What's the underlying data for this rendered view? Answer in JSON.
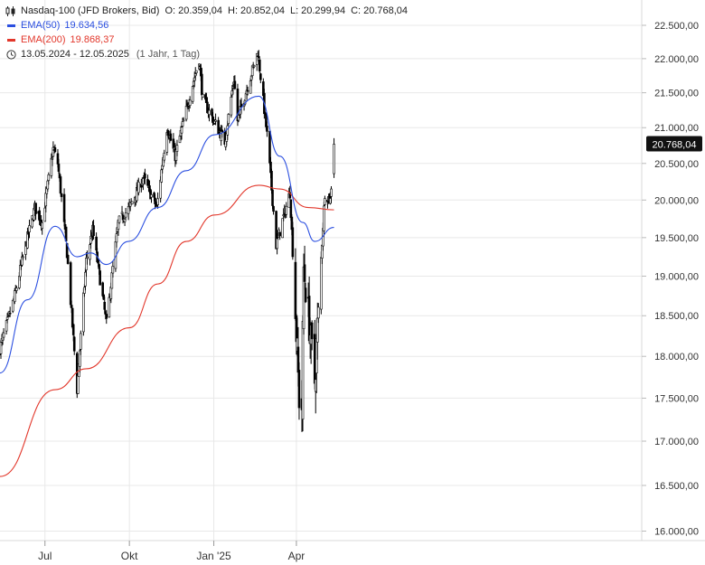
{
  "legend": {
    "instrument": "Nasdaq-100 (JFD Brokers, Bid)",
    "o_label": "O:",
    "o_value": "20.359,04",
    "h_label": "H:",
    "h_value": "20.852,04",
    "l_label": "L:",
    "l_value": "20.299,94",
    "c_label": "C:",
    "c_value": "20.768,04",
    "ema50_label": "EMA(50)",
    "ema50_value": "19.634,56",
    "ema200_label": "EMA(200)",
    "ema200_value": "19.868,37",
    "range": "13.05.2024 - 12.05.2025",
    "period": "(1 Jahr, 1 Tag)"
  },
  "last_price_label": "20.768,04",
  "colors": {
    "ema50": "#2b4fe0",
    "ema200": "#e2372b",
    "candle": "#000000",
    "price_tag_bg": "#111111",
    "grid": "#e8e8e8"
  },
  "chart_data": {
    "type": "candlestick",
    "title": "Nasdaq-100 (JFD Brokers, Bid)",
    "x_tick_labels": [
      "Jul",
      "Okt",
      "Jan '25",
      "Apr"
    ],
    "y_tick_labels": [
      "16.000,00",
      "16.500,00",
      "17.000,00",
      "17.500,00",
      "18.000,00",
      "18.500,00",
      "19.000,00",
      "19.500,00",
      "20.000,00",
      "20.500,00",
      "21.000,00",
      "21.500,00",
      "22.000,00",
      "22.500,00"
    ],
    "y_ticks": [
      16000,
      16500,
      17000,
      17500,
      18000,
      18500,
      19000,
      19500,
      20000,
      20500,
      21000,
      21500,
      22000,
      22500
    ],
    "ylim": [
      15700,
      22750
    ],
    "y_scale": "log",
    "grid": true,
    "last_value": 20768.04,
    "price_series_keypoints": [
      {
        "date": "2024-05-13",
        "close": 18100
      },
      {
        "date": "2024-05-28",
        "close": 18700
      },
      {
        "date": "2024-06-10",
        "close": 19400
      },
      {
        "date": "2024-06-20",
        "close": 19900
      },
      {
        "date": "2024-06-28",
        "close": 19700
      },
      {
        "date": "2024-07-10",
        "close": 20700
      },
      {
        "date": "2024-07-15",
        "close": 20500
      },
      {
        "date": "2024-07-25",
        "close": 19300
      },
      {
        "date": "2024-08-05",
        "close": 17600
      },
      {
        "date": "2024-08-15",
        "close": 19200
      },
      {
        "date": "2024-08-22",
        "close": 19600
      },
      {
        "date": "2024-09-06",
        "close": 18400
      },
      {
        "date": "2024-09-19",
        "close": 19700
      },
      {
        "date": "2024-10-01",
        "close": 19900
      },
      {
        "date": "2024-10-16",
        "close": 20300
      },
      {
        "date": "2024-10-31",
        "close": 19900
      },
      {
        "date": "2024-11-11",
        "close": 21000
      },
      {
        "date": "2024-11-20",
        "close": 20600
      },
      {
        "date": "2024-12-16",
        "close": 22000
      },
      {
        "date": "2024-12-20",
        "close": 21400
      },
      {
        "date": "2025-01-13",
        "close": 20800
      },
      {
        "date": "2025-01-23",
        "close": 21700
      },
      {
        "date": "2025-01-27",
        "close": 21100
      },
      {
        "date": "2025-02-18",
        "close": 22100
      },
      {
        "date": "2025-02-28",
        "close": 20900
      },
      {
        "date": "2025-03-10",
        "close": 19400
      },
      {
        "date": "2025-03-25",
        "close": 20100
      },
      {
        "date": "2025-04-04",
        "close": 17500
      },
      {
        "date": "2025-04-07",
        "close": 17400
      },
      {
        "date": "2025-04-09",
        "close": 19100
      },
      {
        "date": "2025-04-21",
        "close": 17700
      },
      {
        "date": "2025-05-02",
        "close": 20100
      },
      {
        "date": "2025-05-08",
        "close": 20000
      },
      {
        "date": "2025-05-12",
        "close": 20768.04
      }
    ],
    "series": [
      {
        "name": "EMA(50)",
        "points": [
          {
            "date": "2024-05-13",
            "value": 17800
          },
          {
            "date": "2024-06-12",
            "value": 18700
          },
          {
            "date": "2024-07-12",
            "value": 19650
          },
          {
            "date": "2024-08-05",
            "value": 19250
          },
          {
            "date": "2024-08-20",
            "value": 19300
          },
          {
            "date": "2024-09-06",
            "value": 19150
          },
          {
            "date": "2024-09-30",
            "value": 19450
          },
          {
            "date": "2024-11-01",
            "value": 19900
          },
          {
            "date": "2024-12-02",
            "value": 20400
          },
          {
            "date": "2025-01-02",
            "value": 20900
          },
          {
            "date": "2025-02-19",
            "value": 21450
          },
          {
            "date": "2025-03-14",
            "value": 20600
          },
          {
            "date": "2025-04-08",
            "value": 19700
          },
          {
            "date": "2025-04-21",
            "value": 19450
          },
          {
            "date": "2025-05-12",
            "value": 19634.56
          }
        ]
      },
      {
        "name": "EMA(200)",
        "points": [
          {
            "date": "2024-05-13",
            "value": 16600
          },
          {
            "date": "2024-07-12",
            "value": 17600
          },
          {
            "date": "2024-08-15",
            "value": 17850
          },
          {
            "date": "2024-10-01",
            "value": 18350
          },
          {
            "date": "2024-11-01",
            "value": 18900
          },
          {
            "date": "2024-12-02",
            "value": 19450
          },
          {
            "date": "2025-01-02",
            "value": 19800
          },
          {
            "date": "2025-02-19",
            "value": 20200
          },
          {
            "date": "2025-03-14",
            "value": 20150
          },
          {
            "date": "2025-04-14",
            "value": 19900
          },
          {
            "date": "2025-05-12",
            "value": 19868.37
          }
        ]
      }
    ]
  }
}
